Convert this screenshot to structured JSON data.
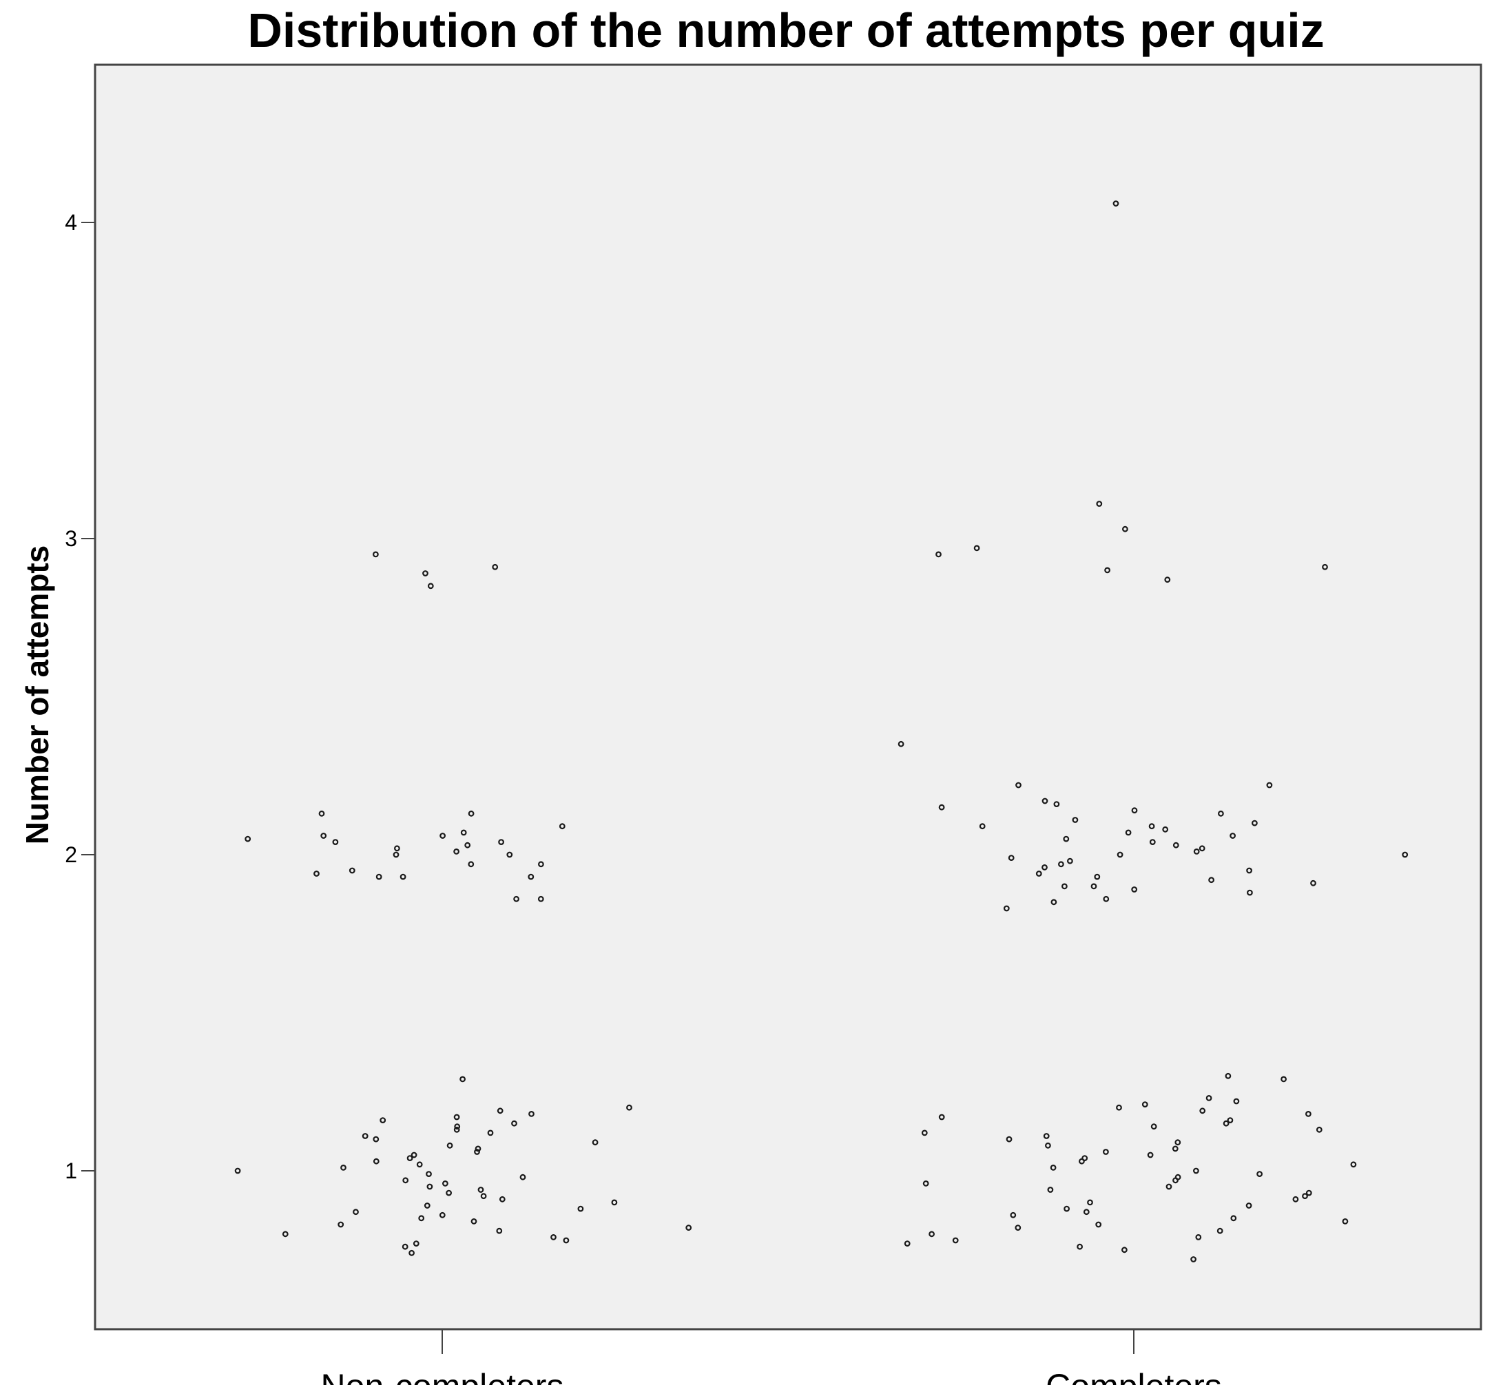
{
  "chart_data": {
    "type": "scatter",
    "title": "Distribution of the number of attempts per quiz",
    "ylabel": "Number of attempts",
    "xlabel": "",
    "categories": [
      "Non-completers",
      "Completers"
    ],
    "y_ticks": [
      1,
      2,
      3,
      4
    ],
    "ylim": [
      0.5,
      4.5
    ],
    "grid": false,
    "jitter": true,
    "series": [
      {
        "category": "Non-completers",
        "values": [
          1.29,
          1.2,
          1.19,
          1.18,
          1.17,
          1.16,
          1.15,
          1.14,
          1.13,
          1.12,
          1.11,
          1.1,
          1.09,
          1.08,
          1.07,
          1.06,
          1.05,
          1.04,
          1.03,
          1.02,
          1.01,
          1.0,
          0.99,
          0.98,
          0.97,
          0.96,
          0.95,
          0.94,
          0.93,
          0.92,
          0.91,
          0.9,
          0.89,
          0.88,
          0.87,
          0.86,
          0.85,
          0.84,
          0.83,
          0.82,
          0.81,
          0.8,
          0.79,
          0.78,
          0.77,
          0.76,
          0.74,
          2.13,
          2.13,
          2.09,
          2.07,
          2.06,
          2.06,
          2.05,
          2.04,
          2.04,
          2.03,
          2.02,
          2.01,
          2.0,
          2.0,
          1.97,
          1.97,
          1.95,
          1.94,
          1.93,
          1.93,
          1.93,
          1.86,
          1.86,
          2.95,
          2.91,
          2.89,
          2.85
        ]
      },
      {
        "category": "Completers",
        "values": [
          1.3,
          1.29,
          1.23,
          1.22,
          1.21,
          1.2,
          1.19,
          1.18,
          1.17,
          1.16,
          1.15,
          1.14,
          1.13,
          1.12,
          1.11,
          1.1,
          1.09,
          1.08,
          1.07,
          1.06,
          1.05,
          1.04,
          1.03,
          1.02,
          1.01,
          1.0,
          0.99,
          0.98,
          0.97,
          0.96,
          0.95,
          0.94,
          0.93,
          0.92,
          0.91,
          0.9,
          0.89,
          0.88,
          0.87,
          0.86,
          0.85,
          0.84,
          0.83,
          0.82,
          0.81,
          0.8,
          0.79,
          0.78,
          0.77,
          0.76,
          0.75,
          0.72,
          2.35,
          2.22,
          2.22,
          2.17,
          2.16,
          2.15,
          2.14,
          2.13,
          2.11,
          2.1,
          2.09,
          2.09,
          2.08,
          2.07,
          2.06,
          2.05,
          2.04,
          2.03,
          2.02,
          2.01,
          2.0,
          2.0,
          1.99,
          1.98,
          1.97,
          1.96,
          1.95,
          1.94,
          1.93,
          1.92,
          1.91,
          1.9,
          1.9,
          1.89,
          1.88,
          1.86,
          1.85,
          1.83,
          4.06,
          3.11,
          3.03,
          2.97,
          2.95,
          2.91,
          2.9,
          2.87
        ]
      }
    ]
  }
}
